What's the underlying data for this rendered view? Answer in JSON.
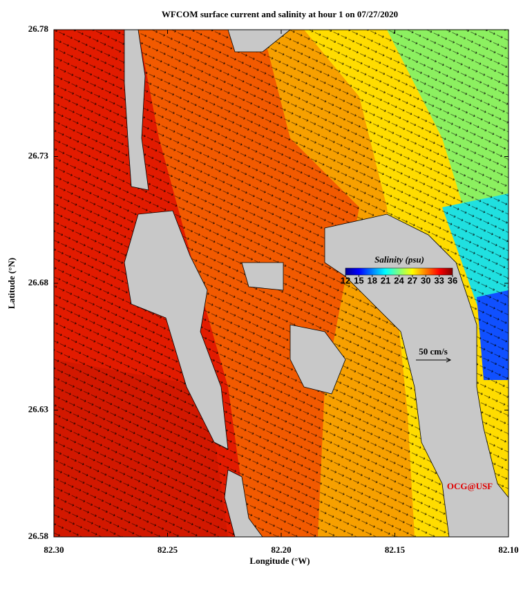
{
  "chart_data": {
    "type": "map",
    "title": "WFCOM surface current and salinity at hour 1 on 07/27/2020",
    "xlabel": "Longitude (°W)",
    "ylabel": "Latitude (°N)",
    "xlim": [
      82.3,
      82.1
    ],
    "ylim": [
      26.58,
      26.78
    ],
    "xticks": [
      {
        "value": 82.3,
        "label": "82.30"
      },
      82.25,
      {
        "value": 82.2,
        "label": "82.20"
      },
      82.15,
      {
        "value": 82.1,
        "label": "82.10"
      }
    ],
    "yticks": [
      26.58,
      26.63,
      26.68,
      26.73,
      26.78
    ],
    "colorbar": {
      "title": "Salinity (psu)",
      "lim": [
        12,
        36
      ],
      "ticks": [
        12,
        15,
        18,
        21,
        24,
        27,
        30,
        33,
        36
      ]
    },
    "scale_label": "50 cm/s",
    "credit": "OCG@USF"
  }
}
